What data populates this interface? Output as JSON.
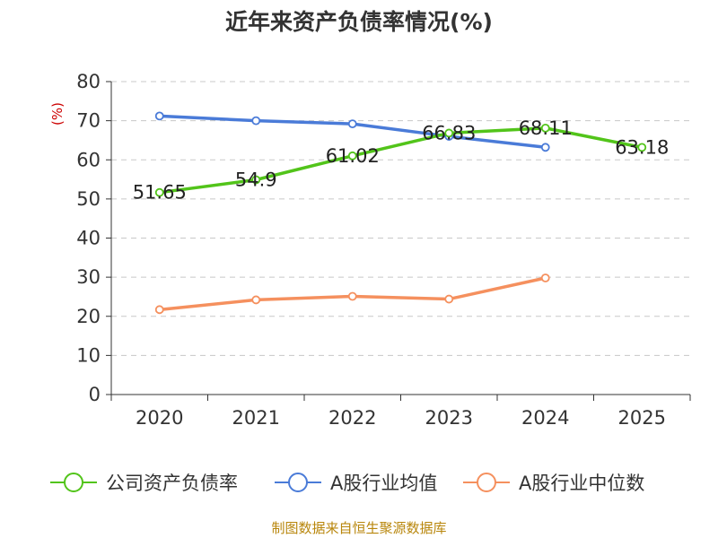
{
  "chart_data": {
    "type": "line",
    "title": "近年来资产负债率情况(%)",
    "ylabel": "(%)",
    "xlabel": "",
    "categories": [
      "2020",
      "2021",
      "2022",
      "2023",
      "2024",
      "2025"
    ],
    "ylim": [
      0,
      80
    ],
    "yticks": [
      0,
      10,
      20,
      30,
      40,
      50,
      60,
      70,
      80
    ],
    "grid": true,
    "legend_position": "bottom",
    "series": [
      {
        "name": "公司资产负债率",
        "color": "#52c41a",
        "values": [
          51.65,
          54.9,
          61.02,
          66.83,
          68.11,
          63.18
        ],
        "labels": [
          "51.65",
          "54.9",
          "61.02",
          "66.83",
          "68.11",
          "63.18"
        ]
      },
      {
        "name": "A股行业均值",
        "color": "#4a7bd8",
        "values": [
          71.2,
          70.0,
          69.2,
          66.0,
          63.2,
          null
        ]
      },
      {
        "name": "A股行业中位数",
        "color": "#f5905e",
        "values": [
          21.7,
          24.2,
          25.1,
          24.4,
          29.8,
          null
        ]
      }
    ]
  },
  "source": "制图数据来自恒生聚源数据库"
}
